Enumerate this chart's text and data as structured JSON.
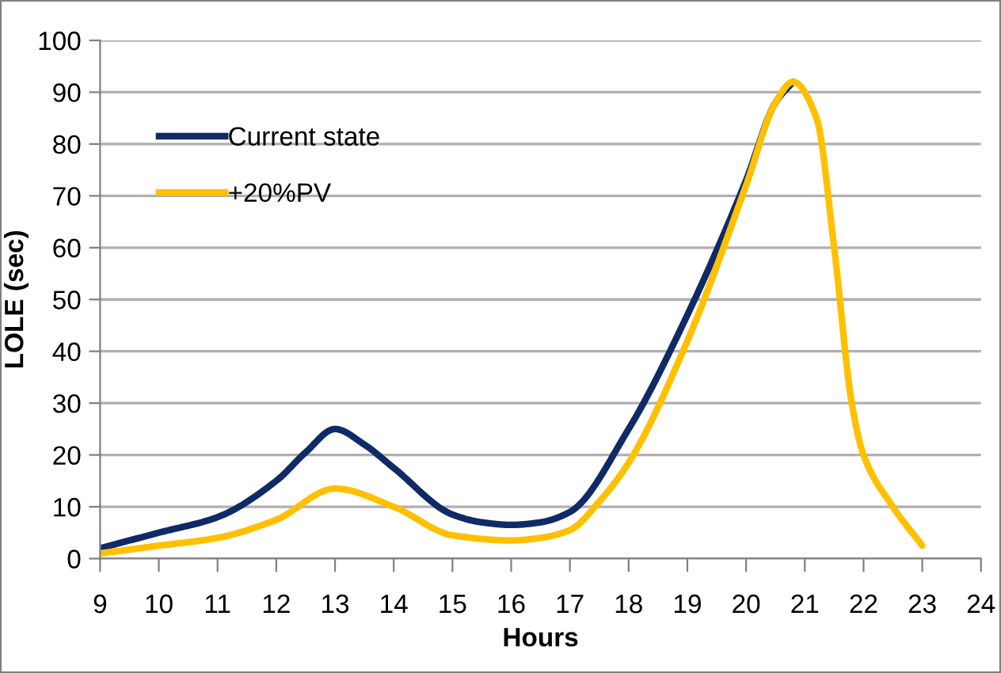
{
  "chart_data": {
    "type": "line",
    "xlabel": "Hours",
    "ylabel": "LOLE (sec)",
    "xlim": [
      9,
      24
    ],
    "xticks": [
      9,
      10,
      11,
      12,
      13,
      14,
      15,
      16,
      17,
      18,
      19,
      20,
      21,
      22,
      23,
      24
    ],
    "ylim": [
      0,
      100
    ],
    "yticks": [
      0,
      10,
      20,
      30,
      40,
      50,
      60,
      70,
      80,
      90,
      100
    ],
    "grid": "y",
    "legend": "top left",
    "marker": "none",
    "line_style": "solid",
    "series": [
      {
        "name": "Current state",
        "color": "#0f2a66",
        "x": [
          9,
          10,
          11,
          12,
          12.5,
          13,
          13.5,
          14,
          15,
          15.5,
          16,
          16.5,
          17,
          18,
          19,
          20,
          20.5,
          20.8
        ],
        "values": [
          2,
          5,
          8,
          15,
          20.5,
          25,
          22,
          17.5,
          8.5,
          7,
          6.5,
          7,
          9,
          25,
          47,
          73,
          88,
          92
        ]
      },
      {
        "name": "+20%PV",
        "color": "#ffc000",
        "x": [
          9,
          10,
          11,
          12,
          13,
          14,
          15,
          16,
          16.5,
          17,
          17.5,
          18,
          19,
          20,
          20.5,
          20.8,
          21.2,
          21.5,
          21.8,
          22,
          22.5,
          23
        ],
        "values": [
          1,
          2.5,
          4,
          7.5,
          13.5,
          10,
          4.5,
          3.5,
          4,
          5.5,
          11,
          18.5,
          42,
          72,
          88,
          92,
          85,
          60,
          30,
          20,
          10,
          2.5
        ]
      }
    ]
  }
}
